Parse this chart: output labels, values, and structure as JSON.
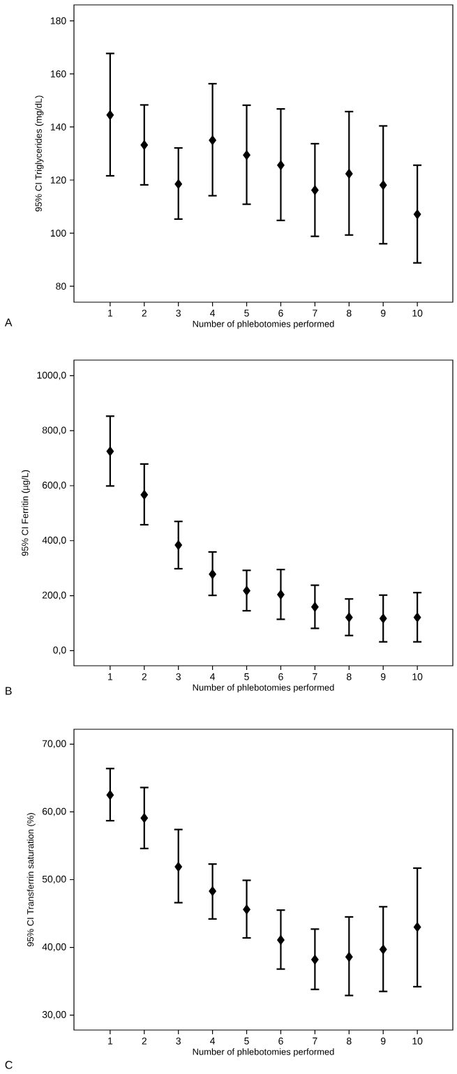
{
  "chart_data": [
    {
      "type": "scatter",
      "ylabel": "95% CI Triglycerides (mg/dL)",
      "xlabel": "Number of phlebotomies performed",
      "annotations": [
        "A"
      ],
      "marker": "diamond",
      "color": "#000000",
      "categories": [
        "1",
        "2",
        "3",
        "4",
        "5",
        "6",
        "7",
        "8",
        "9",
        "10"
      ],
      "values": [
        144.5,
        133.2,
        118.5,
        135.0,
        129.4,
        125.6,
        116.2,
        122.4,
        118.1,
        107.1
      ],
      "errors": [
        [
          121.6,
          167.7
        ],
        [
          118.2,
          148.3
        ],
        [
          105.3,
          132.1
        ],
        [
          114.1,
          156.3
        ],
        [
          110.9,
          148.2
        ],
        [
          104.8,
          146.8
        ],
        [
          98.8,
          133.7
        ],
        [
          99.3,
          145.8
        ],
        [
          96.0,
          140.4
        ],
        [
          88.8,
          125.6
        ]
      ],
      "ylim": [
        74,
        186
      ],
      "yticks": [
        80,
        100,
        120,
        140,
        160,
        180
      ]
    },
    {
      "type": "scatter",
      "ylabel": "95% CI Ferritin (µg/L)",
      "xlabel": "Number of phlebotomies performed",
      "annotations": [
        "B"
      ],
      "marker": "diamond",
      "color": "#000000",
      "categories": [
        "1",
        "2",
        "3",
        "4",
        "5",
        "6",
        "7",
        "8",
        "9",
        "10"
      ],
      "values": [
        725,
        567,
        384,
        278,
        218,
        204,
        159,
        121,
        117,
        121
      ],
      "errors": [
        [
          599,
          853
        ],
        [
          458,
          679
        ],
        [
          298,
          470
        ],
        [
          201,
          359
        ],
        [
          145,
          292
        ],
        [
          114,
          295
        ],
        [
          81,
          238
        ],
        [
          55,
          188
        ],
        [
          32,
          202
        ],
        [
          32,
          211
        ]
      ],
      "ylim": [
        -55,
        1057
      ],
      "yticks": [
        {
          "value": 0,
          "label": "0,0"
        },
        {
          "value": 200,
          "label": "200,0"
        },
        {
          "value": 400,
          "label": "400,0"
        },
        {
          "value": 600,
          "label": "600,0"
        },
        {
          "value": 800,
          "label": "800,0"
        },
        {
          "value": 1000,
          "label": "1000,0"
        }
      ]
    },
    {
      "type": "scatter",
      "ylabel": "95% CI Transferrin saturation (%)",
      "xlabel": "Number of phlebotomies performed",
      "annotations": [
        "C"
      ],
      "marker": "diamond",
      "color": "#000000",
      "categories": [
        "1",
        "2",
        "3",
        "4",
        "5",
        "6",
        "7",
        "8",
        "9",
        "10"
      ],
      "values": [
        62.5,
        59.1,
        51.9,
        48.3,
        45.6,
        41.1,
        38.2,
        38.6,
        39.7,
        43.0
      ],
      "errors": [
        [
          58.7,
          66.4
        ],
        [
          54.6,
          63.6
        ],
        [
          46.6,
          57.4
        ],
        [
          44.2,
          52.3
        ],
        [
          41.4,
          49.9
        ],
        [
          36.8,
          45.5
        ],
        [
          33.8,
          42.7
        ],
        [
          32.9,
          44.5
        ],
        [
          33.5,
          46.0
        ],
        [
          34.2,
          51.7
        ]
      ],
      "ylim": [
        27.8,
        72.2
      ],
      "yticks": [
        {
          "value": 30,
          "label": "30,00"
        },
        {
          "value": 40,
          "label": "40,00"
        },
        {
          "value": 50,
          "label": "50,00"
        },
        {
          "value": 60,
          "label": "60,00"
        },
        {
          "value": 70,
          "label": "70,00"
        }
      ]
    }
  ]
}
